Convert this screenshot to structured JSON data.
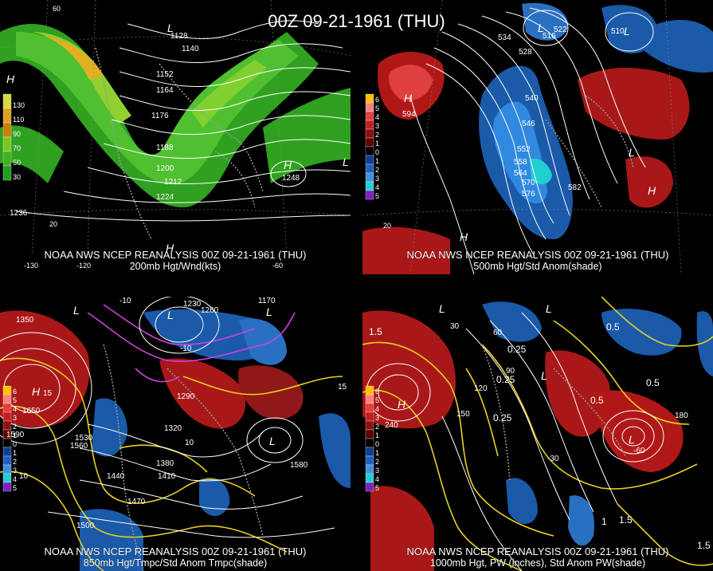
{
  "title": "00Z 09-21-1961 (THU)",
  "panels": [
    {
      "id": "p200",
      "caption_line1": "NOAA NWS NCEP REANALYSIS 00Z 09-21-1961 (THU)",
      "caption_line2": "200mb Hgt/Wnd(kts)",
      "legend": [
        "130",
        "110",
        "90",
        "70",
        "50",
        "30"
      ],
      "legend_colors": [
        "#d8d840",
        "#e0a020",
        "#c88010",
        "#78c820",
        "#40b020",
        "#20a020"
      ],
      "contour_labels": [
        "1128",
        "1140",
        "1152",
        "1164",
        "1176",
        "1188",
        "1200",
        "1212",
        "1224",
        "1236",
        "1248"
      ],
      "highs": [
        "H",
        "H",
        "H"
      ],
      "lows": [
        "L",
        "L"
      ],
      "lat_labels": [
        "60",
        "20"
      ],
      "lon_labels": [
        "-130",
        "-120",
        "-60"
      ]
    },
    {
      "id": "p500",
      "caption_line1": "NOAA NWS NCEP REANALYSIS 00Z 09-21-1961 (THU)",
      "caption_line2": "500mb Hgt/Std Anom(shade)",
      "legend": [
        "6",
        "5",
        "4",
        "3",
        "2",
        "1",
        "0",
        "1",
        "2",
        "3",
        "4",
        "5"
      ],
      "legend_colors": [
        "#ffc000",
        "#ff8080",
        "#e04040",
        "#c02020",
        "#901010",
        "#600000",
        "#000000",
        "#104090",
        "#2060c0",
        "#4090e0",
        "#20d0d0",
        "#8020c0"
      ],
      "contour_labels": [
        "534",
        "528",
        "522",
        "516",
        "510",
        "540",
        "546",
        "552",
        "558",
        "564",
        "570",
        "576",
        "582",
        "594"
      ],
      "highs": [
        "H",
        "H",
        "H"
      ],
      "lows": [
        "L",
        "L",
        "L"
      ],
      "lat_labels": [
        "20"
      ],
      "lon_labels": []
    },
    {
      "id": "p850",
      "caption_line1": "NOAA NWS NCEP REANALYSIS 00Z 09-21-1961 (THU)",
      "caption_line2": "850mb Hgt/Tmpc/Std Anom Tmpc(shade)",
      "legend": [
        "6",
        "5",
        "4",
        "3",
        "2",
        "1",
        "0",
        "1",
        "2",
        "3",
        "4",
        "5"
      ],
      "legend_colors": [
        "#ffc000",
        "#ff8080",
        "#e04040",
        "#c02020",
        "#901010",
        "#600000",
        "#000000",
        "#104090",
        "#2060c0",
        "#4090e0",
        "#20d0d0",
        "#8020c0"
      ],
      "contour_labels": [
        "1290",
        "1320",
        "1350",
        "1230",
        "1260",
        "1170",
        "1650",
        "1560",
        "1530",
        "1590",
        "1440",
        "1410",
        "1380",
        "1470",
        "1500",
        "1580"
      ],
      "temp_labels": [
        "-10",
        "-10",
        "15",
        "15",
        "10",
        "10"
      ],
      "highs": [
        "H"
      ],
      "lows": [
        "L",
        "L",
        "L",
        "L"
      ],
      "lat_labels": [],
      "lon_labels": []
    },
    {
      "id": "p1000",
      "caption_line1": "NOAA NWS NCEP REANALYSIS 00Z 09-21-1961 (THU)",
      "caption_line2": "1000mb Hgt, PW (inches), Std Anom PW(shade)",
      "legend": [
        "6",
        "5",
        "4",
        "3",
        "2",
        "1",
        "0",
        "1",
        "2",
        "3",
        "4",
        "5"
      ],
      "legend_colors": [
        "#ffc000",
        "#ff8080",
        "#e04040",
        "#c02020",
        "#901010",
        "#600000",
        "#000000",
        "#104090",
        "#2060c0",
        "#4090e0",
        "#20d0d0",
        "#8020c0"
      ],
      "contour_labels": [
        "30",
        "60",
        "90",
        "120",
        "150",
        "180",
        "240",
        "-30",
        "-60"
      ],
      "pw_labels": [
        "1.5",
        "0.5",
        "0.25",
        "0.25",
        "0.25",
        "0.5",
        "0.5",
        "1",
        "1.5",
        "1.5"
      ],
      "highs": [
        "H"
      ],
      "lows": [
        "L",
        "L",
        "L",
        "L"
      ],
      "lat_labels": [],
      "lon_labels": []
    }
  ]
}
